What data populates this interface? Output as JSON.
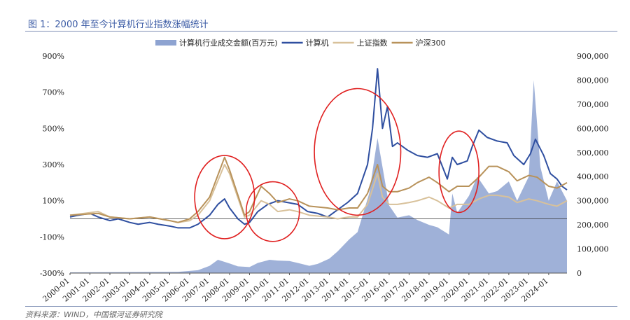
{
  "figure": {
    "title": "图 1：2000 年至今计算机行业指数涨幅统计",
    "source": "资料来源：WIND，中国银河证券研究院"
  },
  "chart_data": {
    "type": "line",
    "title": "",
    "xlabel": "",
    "ylabel_left": "",
    "ylabel_right": "",
    "ylim_left": [
      -300,
      900
    ],
    "ylim_right": [
      0,
      900000
    ],
    "y_left_ticks": [
      -300,
      -100,
      100,
      300,
      500,
      700,
      900
    ],
    "y_left_tick_labels": [
      "-300%",
      "-100%",
      "100%",
      "300%",
      "500%",
      "700%",
      "900%"
    ],
    "y_right_ticks": [
      0,
      100000,
      200000,
      300000,
      400000,
      500000,
      600000,
      700000,
      800000,
      900000
    ],
    "y_right_tick_labels": [
      "0",
      "100,000",
      "200,000",
      "300,000",
      "400,000",
      "500,000",
      "600,000",
      "700,000",
      "800,000",
      "900,000"
    ],
    "x_tick_labels": [
      "2000-01",
      "2001-01",
      "2002-01",
      "2003-01",
      "2004-01",
      "2005-01",
      "2006-01",
      "2007-01",
      "2008-01",
      "2009-01",
      "2010-01",
      "2011-01",
      "2012-01",
      "2013-01",
      "2014-01",
      "2015-01",
      "2016-01",
      "2017-01",
      "2018-01",
      "2019-01",
      "2020-01",
      "2021-01",
      "2022-01",
      "2023-01",
      "2024-01"
    ],
    "x_range": [
      "2000-01",
      "2024-12"
    ],
    "legend_position": "top-center",
    "grid": false,
    "series": [
      {
        "name": "计算机行业成交金额(百万元)",
        "kind": "area",
        "axis": "right",
        "color": "#8ea3d1",
        "x": [
          "2000-01",
          "2005-06",
          "2006-06",
          "2007-01",
          "2007-06",
          "2008-01",
          "2008-06",
          "2009-01",
          "2009-06",
          "2010-01",
          "2010-06",
          "2011-01",
          "2011-06",
          "2012-01",
          "2012-06",
          "2013-01",
          "2013-06",
          "2014-01",
          "2014-06",
          "2015-01",
          "2015-06",
          "2016-01",
          "2016-06",
          "2017-01",
          "2017-06",
          "2018-01",
          "2018-06",
          "2019-01",
          "2019-03",
          "2019-06",
          "2020-01",
          "2020-06",
          "2021-01",
          "2021-06",
          "2022-01",
          "2022-06",
          "2023-01",
          "2023-04",
          "2023-08",
          "2024-01",
          "2024-06",
          "2024-12"
        ],
        "values": [
          3000,
          5000,
          12000,
          30000,
          55000,
          40000,
          28000,
          25000,
          42000,
          55000,
          52000,
          50000,
          42000,
          30000,
          38000,
          60000,
          90000,
          140000,
          170000,
          330000,
          560000,
          280000,
          230000,
          240000,
          220000,
          200000,
          190000,
          160000,
          330000,
          250000,
          320000,
          400000,
          330000,
          340000,
          380000,
          300000,
          400000,
          800000,
          440000,
          300000,
          380000,
          300000
        ]
      },
      {
        "name": "计算机",
        "kind": "line",
        "axis": "left",
        "color": "#2f4fa0",
        "x": [
          "2000-01",
          "2000-06",
          "2001-01",
          "2001-06",
          "2002-01",
          "2002-06",
          "2003-01",
          "2003-06",
          "2004-01",
          "2004-06",
          "2005-01",
          "2005-06",
          "2006-01",
          "2006-06",
          "2007-01",
          "2007-06",
          "2007-10",
          "2008-01",
          "2008-06",
          "2008-10",
          "2009-01",
          "2009-06",
          "2009-12",
          "2010-06",
          "2010-12",
          "2011-06",
          "2011-12",
          "2012-06",
          "2012-12",
          "2013-06",
          "2013-12",
          "2014-06",
          "2014-12",
          "2015-03",
          "2015-06",
          "2015-09",
          "2015-12",
          "2016-03",
          "2016-06",
          "2016-12",
          "2017-06",
          "2017-12",
          "2018-06",
          "2018-12",
          "2019-03",
          "2019-06",
          "2019-12",
          "2020-03",
          "2020-07",
          "2020-12",
          "2021-06",
          "2021-12",
          "2022-04",
          "2022-10",
          "2023-02",
          "2023-05",
          "2023-10",
          "2024-02",
          "2024-06",
          "2024-09",
          "2024-12"
        ],
        "values": [
          10,
          20,
          30,
          10,
          -10,
          0,
          -20,
          -30,
          -20,
          -30,
          -40,
          -50,
          -50,
          -30,
          20,
          80,
          110,
          60,
          0,
          -30,
          -20,
          40,
          80,
          100,
          90,
          80,
          40,
          30,
          10,
          50,
          90,
          140,
          300,
          500,
          830,
          500,
          620,
          400,
          420,
          380,
          350,
          340,
          360,
          220,
          340,
          300,
          320,
          400,
          490,
          450,
          430,
          420,
          350,
          300,
          360,
          440,
          350,
          250,
          220,
          180,
          160
        ]
      },
      {
        "name": "上证指数",
        "kind": "line",
        "axis": "left",
        "color": "#d8c19a",
        "x": [
          "2000-01",
          "2001-06",
          "2002-01",
          "2003-01",
          "2004-01",
          "2005-01",
          "2005-06",
          "2006-01",
          "2006-06",
          "2007-01",
          "2007-10",
          "2008-01",
          "2008-10",
          "2009-01",
          "2009-08",
          "2010-01",
          "2010-06",
          "2011-01",
          "2011-06",
          "2012-01",
          "2012-12",
          "2013-06",
          "2014-01",
          "2014-06",
          "2014-12",
          "2015-06",
          "2015-09",
          "2016-01",
          "2016-06",
          "2017-01",
          "2017-06",
          "2018-01",
          "2018-06",
          "2019-01",
          "2019-06",
          "2020-01",
          "2020-07",
          "2021-01",
          "2021-06",
          "2022-01",
          "2022-06",
          "2023-01",
          "2023-06",
          "2024-01",
          "2024-06",
          "2024-12"
        ],
        "values": [
          20,
          40,
          10,
          0,
          10,
          -10,
          -20,
          -10,
          20,
          100,
          300,
          250,
          10,
          20,
          100,
          80,
          40,
          50,
          40,
          20,
          10,
          0,
          10,
          10,
          80,
          250,
          120,
          80,
          80,
          90,
          100,
          120,
          100,
          60,
          80,
          80,
          110,
          130,
          130,
          120,
          90,
          110,
          100,
          80,
          70,
          100
        ]
      },
      {
        "name": "沪深300",
        "kind": "line",
        "axis": "left",
        "color": "#b8925a",
        "x": [
          "2000-01",
          "2001-06",
          "2002-01",
          "2003-01",
          "2004-01",
          "2005-01",
          "2005-06",
          "2006-01",
          "2006-06",
          "2007-01",
          "2007-10",
          "2008-01",
          "2008-10",
          "2009-01",
          "2009-08",
          "2010-01",
          "2010-06",
          "2011-01",
          "2011-06",
          "2012-01",
          "2012-12",
          "2013-06",
          "2014-01",
          "2014-06",
          "2014-12",
          "2015-06",
          "2015-09",
          "2016-01",
          "2016-06",
          "2017-01",
          "2017-06",
          "2018-01",
          "2018-06",
          "2019-01",
          "2019-06",
          "2020-01",
          "2020-07",
          "2021-01",
          "2021-06",
          "2022-01",
          "2022-06",
          "2023-01",
          "2023-06",
          "2024-01",
          "2024-06",
          "2024-12"
        ],
        "values": [
          20,
          30,
          10,
          0,
          10,
          -10,
          -20,
          0,
          40,
          120,
          340,
          270,
          20,
          40,
          180,
          140,
          90,
          110,
          100,
          70,
          60,
          50,
          60,
          60,
          140,
          300,
          180,
          150,
          150,
          170,
          200,
          230,
          200,
          150,
          180,
          180,
          230,
          290,
          290,
          260,
          210,
          240,
          230,
          180,
          170,
          200
        ]
      }
    ],
    "reference_line": {
      "axis": "left",
      "value": 0,
      "color": "#333333"
    },
    "annotations": [
      {
        "shape": "ellipse",
        "color": "#e02020",
        "x_center": "2007-10",
        "x_half_span_months": 18,
        "y_center_left": 120,
        "y_half_span_left": 230
      },
      {
        "shape": "ellipse",
        "color": "#e02020",
        "x_center": "2010-03",
        "x_half_span_months": 16,
        "y_center_left": 40,
        "y_half_span_left": 165
      },
      {
        "shape": "ellipse",
        "color": "#e02020",
        "x_center": "2014-06",
        "x_half_span_months": 26,
        "y_center_left": 370,
        "y_half_span_left": 350
      },
      {
        "shape": "ellipse",
        "color": "#e02020",
        "x_center": "2019-07",
        "x_half_span_months": 12,
        "y_center_left": 260,
        "y_half_span_left": 225
      }
    ]
  }
}
